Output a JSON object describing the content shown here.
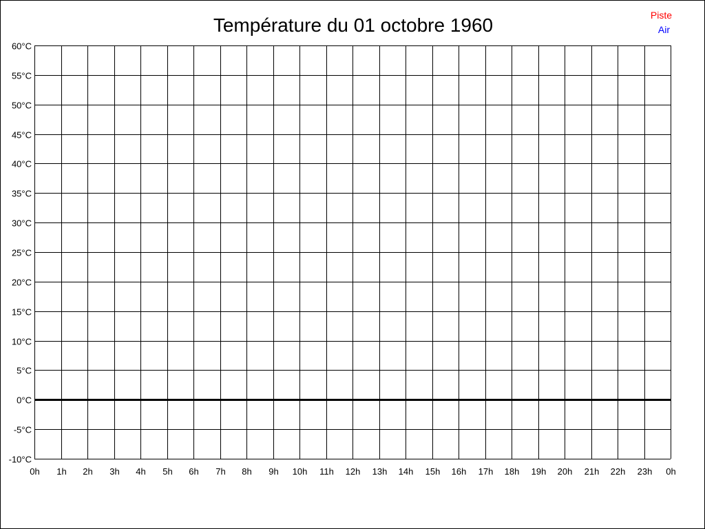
{
  "chart_data": {
    "type": "line",
    "title": "Température du 01 octobre 1960",
    "xlabel": "",
    "ylabel": "",
    "x_ticks": [
      "0h",
      "1h",
      "2h",
      "3h",
      "4h",
      "5h",
      "6h",
      "7h",
      "8h",
      "9h",
      "10h",
      "11h",
      "12h",
      "13h",
      "14h",
      "15h",
      "16h",
      "17h",
      "18h",
      "19h",
      "20h",
      "21h",
      "22h",
      "23h",
      "0h"
    ],
    "y_ticks": [
      "60°C",
      "55°C",
      "50°C",
      "45°C",
      "40°C",
      "35°C",
      "30°C",
      "25°C",
      "20°C",
      "15°C",
      "10°C",
      "5°C",
      "0°C",
      "-5°C",
      "-10°C"
    ],
    "ylim": [
      -10,
      60
    ],
    "xlim_hours": [
      0,
      24
    ],
    "grid": true,
    "zero_line_emphasized": true,
    "legend_position": "top-right",
    "series": [
      {
        "name": "Piste",
        "color": "#ff0000",
        "values": []
      },
      {
        "name": "Air",
        "color": "#0000ff",
        "values": []
      }
    ]
  }
}
